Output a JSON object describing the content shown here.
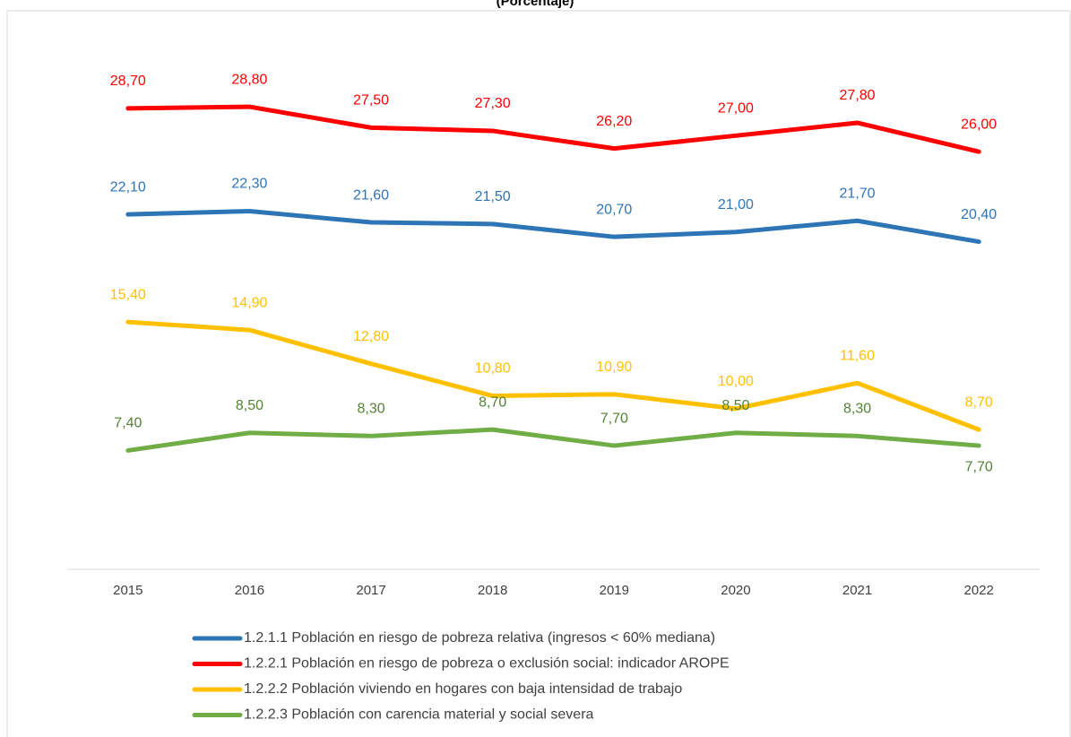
{
  "chart_data": {
    "type": "line",
    "title": "(Porcentaje)",
    "categories": [
      "2015",
      "2016",
      "2017",
      "2018",
      "2019",
      "2020",
      "2021",
      "2022"
    ],
    "ylim": [
      0,
      35
    ],
    "series": [
      {
        "name": "1.2.1.1 Población en riesgo de pobreza relativa (ingresos < 60% mediana)",
        "color": "#2e75b6",
        "values": [
          22.1,
          22.3,
          21.6,
          21.5,
          20.7,
          21.0,
          21.7,
          20.4
        ],
        "value_labels": [
          "22,10",
          "22,30",
          "21,60",
          "21,50",
          "20,70",
          "21,00",
          "21,70",
          "20,40"
        ]
      },
      {
        "name": "1.2.2.1 Población en riesgo de pobreza o exclusión social: indicador AROPE",
        "color": "#ff0000",
        "values": [
          28.7,
          28.8,
          27.5,
          27.3,
          26.2,
          27.0,
          27.8,
          26.0
        ],
        "value_labels": [
          "28,70",
          "28,80",
          "27,50",
          "27,30",
          "26,20",
          "27,00",
          "27,80",
          "26,00"
        ]
      },
      {
        "name": "1.2.2.2 Población viviendo en hogares con baja intensidad de trabajo",
        "color": "#ffc000",
        "values": [
          15.4,
          14.9,
          12.8,
          10.8,
          10.9,
          10.0,
          11.6,
          8.7
        ],
        "value_labels": [
          "15,40",
          "14,90",
          "12,80",
          "10,80",
          "10,90",
          "10,00",
          "11,60",
          "8,70"
        ]
      },
      {
        "name": "1.2.2.3 Población con carencia material y social severa",
        "color": "#70ad47",
        "values": [
          7.4,
          8.5,
          8.3,
          8.7,
          7.7,
          8.5,
          8.3,
          7.7
        ],
        "value_labels": [
          "7,40",
          "8,50",
          "8,30",
          "8,70",
          "7,70",
          "8,50",
          "8,30",
          "7,70"
        ]
      }
    ]
  }
}
